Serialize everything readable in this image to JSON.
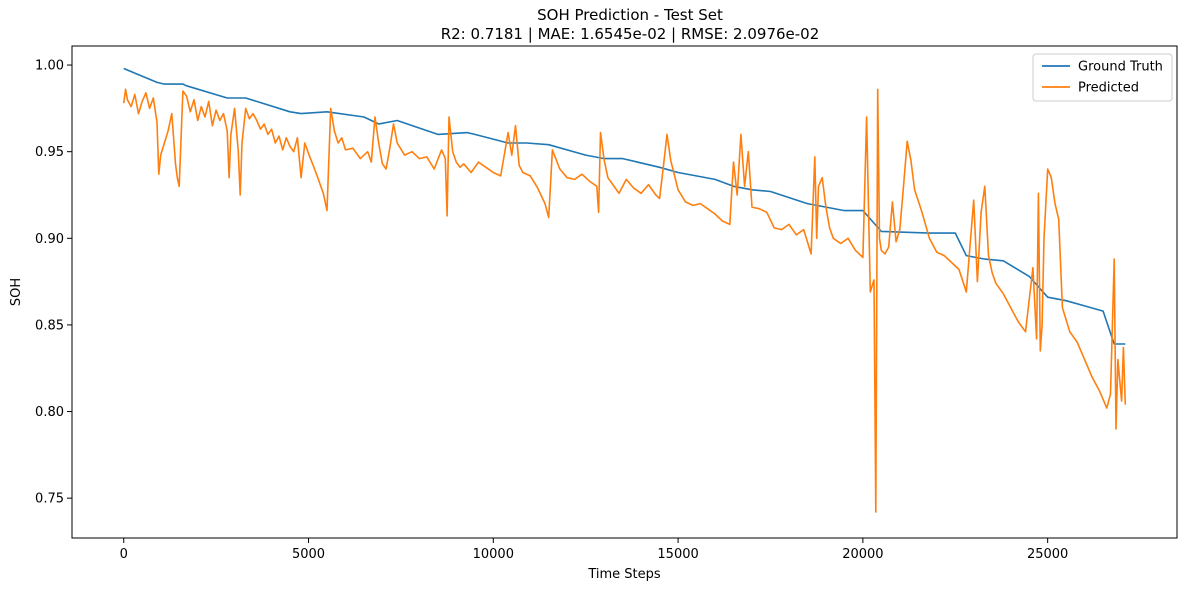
{
  "chart_data": {
    "type": "line",
    "title": "SOH Prediction - Test Set",
    "subtitle": "R2: 0.7181 | MAE: 1.6545e-02 | RMSE: 2.0976e-02",
    "xlabel": "Time Steps",
    "ylabel": "SOH",
    "xlim": [
      -1400,
      28500
    ],
    "ylim": [
      0.727,
      1.011
    ],
    "xticks": [
      0,
      5000,
      10000,
      15000,
      20000,
      25000
    ],
    "xtick_labels": [
      "0",
      "5000",
      "10000",
      "15000",
      "20000",
      "25000"
    ],
    "yticks": [
      0.75,
      0.8,
      0.85,
      0.9,
      0.95,
      1.0
    ],
    "ytick_labels": [
      "0.75",
      "0.80",
      "0.85",
      "0.90",
      "0.95",
      "1.00"
    ],
    "grid": false,
    "legend_position": "top-right",
    "series": [
      {
        "name": "Ground Truth",
        "color": "#1f77b4",
        "x": [
          0,
          900,
          1100,
          1600,
          1700,
          2800,
          3300,
          4500,
          4800,
          5500,
          6500,
          6900,
          7400,
          8500,
          9300,
          9500,
          10400,
          10900,
          11500,
          12500,
          13000,
          13500,
          14500,
          15000,
          16000,
          16500,
          17000,
          17500,
          18500,
          19500,
          20000,
          20500,
          21800,
          22500,
          22800,
          23300,
          23800,
          24500,
          25000,
          25500,
          26000,
          26500,
          26800,
          27100
        ],
        "y": [
          0.998,
          0.99,
          0.989,
          0.989,
          0.988,
          0.981,
          0.981,
          0.973,
          0.972,
          0.973,
          0.97,
          0.966,
          0.968,
          0.96,
          0.961,
          0.96,
          0.955,
          0.955,
          0.954,
          0.948,
          0.946,
          0.946,
          0.941,
          0.938,
          0.934,
          0.93,
          0.928,
          0.927,
          0.92,
          0.916,
          0.916,
          0.904,
          0.903,
          0.903,
          0.89,
          0.888,
          0.887,
          0.878,
          0.866,
          0.864,
          0.861,
          0.858,
          0.839,
          0.839
        ]
      },
      {
        "name": "Predicted",
        "color": "#ff7f0e",
        "x": [
          0,
          50,
          100,
          200,
          300,
          400,
          500,
          600,
          700,
          800,
          900,
          950,
          1000,
          1100,
          1200,
          1300,
          1350,
          1400,
          1450,
          1500,
          1600,
          1700,
          1800,
          1900,
          2000,
          2100,
          2200,
          2300,
          2400,
          2500,
          2600,
          2700,
          2800,
          2850,
          2900,
          3000,
          3100,
          3150,
          3200,
          3300,
          3400,
          3500,
          3600,
          3700,
          3800,
          3900,
          4000,
          4100,
          4200,
          4300,
          4400,
          4500,
          4600,
          4700,
          4800,
          4900,
          5000,
          5200,
          5400,
          5500,
          5600,
          5700,
          5800,
          5900,
          6000,
          6200,
          6400,
          6600,
          6700,
          6800,
          6900,
          7000,
          7100,
          7200,
          7300,
          7400,
          7600,
          7800,
          8000,
          8200,
          8400,
          8600,
          8700,
          8750,
          8800,
          8900,
          9000,
          9100,
          9200,
          9400,
          9600,
          9800,
          10000,
          10200,
          10400,
          10500,
          10600,
          10700,
          10800,
          11000,
          11200,
          11400,
          11500,
          11600,
          11800,
          12000,
          12200,
          12400,
          12600,
          12800,
          12850,
          12900,
          13000,
          13100,
          13200,
          13400,
          13600,
          13800,
          14000,
          14200,
          14400,
          14500,
          14600,
          14700,
          14800,
          15000,
          15200,
          15400,
          15600,
          15800,
          16000,
          16200,
          16400,
          16500,
          16600,
          16700,
          16800,
          16900,
          17000,
          17200,
          17400,
          17600,
          17800,
          18000,
          18200,
          18400,
          18600,
          18700,
          18750,
          18800,
          18900,
          19000,
          19100,
          19200,
          19400,
          19600,
          19800,
          20000,
          20100,
          20200,
          20300,
          20350,
          20400,
          20450,
          20500,
          20600,
          20700,
          20800,
          20900,
          21000,
          21100,
          21200,
          21300,
          21400,
          21600,
          21800,
          22000,
          22200,
          22400,
          22600,
          22800,
          23000,
          23100,
          23200,
          23300,
          23400,
          23500,
          23600,
          23800,
          24000,
          24200,
          24400,
          24600,
          24700,
          24750,
          24800,
          24850,
          24900,
          25000,
          25100,
          25200,
          25300,
          25400,
          25600,
          25800,
          26000,
          26200,
          26400,
          26600,
          26700,
          26800,
          26850,
          26900,
          27000,
          27050,
          27100
        ],
        "y": [
          0.978,
          0.986,
          0.98,
          0.976,
          0.983,
          0.972,
          0.979,
          0.984,
          0.975,
          0.981,
          0.967,
          0.937,
          0.948,
          0.955,
          0.962,
          0.972,
          0.958,
          0.943,
          0.935,
          0.93,
          0.985,
          0.982,
          0.973,
          0.98,
          0.968,
          0.976,
          0.97,
          0.979,
          0.965,
          0.974,
          0.968,
          0.972,
          0.962,
          0.935,
          0.96,
          0.975,
          0.95,
          0.925,
          0.955,
          0.975,
          0.969,
          0.972,
          0.968,
          0.963,
          0.966,
          0.96,
          0.963,
          0.955,
          0.959,
          0.951,
          0.958,
          0.953,
          0.95,
          0.958,
          0.935,
          0.955,
          0.949,
          0.938,
          0.926,
          0.916,
          0.975,
          0.962,
          0.955,
          0.958,
          0.951,
          0.952,
          0.946,
          0.95,
          0.944,
          0.97,
          0.955,
          0.943,
          0.94,
          0.952,
          0.966,
          0.955,
          0.948,
          0.95,
          0.946,
          0.947,
          0.94,
          0.951,
          0.946,
          0.913,
          0.97,
          0.95,
          0.944,
          0.941,
          0.943,
          0.938,
          0.944,
          0.941,
          0.938,
          0.936,
          0.961,
          0.948,
          0.965,
          0.942,
          0.938,
          0.936,
          0.929,
          0.92,
          0.912,
          0.951,
          0.94,
          0.935,
          0.934,
          0.937,
          0.933,
          0.93,
          0.915,
          0.961,
          0.945,
          0.935,
          0.932,
          0.926,
          0.934,
          0.929,
          0.926,
          0.931,
          0.925,
          0.923,
          0.941,
          0.96,
          0.945,
          0.928,
          0.921,
          0.919,
          0.92,
          0.917,
          0.914,
          0.91,
          0.908,
          0.944,
          0.925,
          0.96,
          0.93,
          0.95,
          0.918,
          0.917,
          0.915,
          0.906,
          0.905,
          0.908,
          0.902,
          0.905,
          0.891,
          0.947,
          0.9,
          0.93,
          0.935,
          0.918,
          0.906,
          0.9,
          0.897,
          0.9,
          0.893,
          0.889,
          0.97,
          0.869,
          0.876,
          0.742,
          0.986,
          0.9,
          0.893,
          0.891,
          0.895,
          0.921,
          0.898,
          0.905,
          0.93,
          0.956,
          0.945,
          0.928,
          0.915,
          0.9,
          0.892,
          0.89,
          0.886,
          0.882,
          0.869,
          0.922,
          0.875,
          0.915,
          0.93,
          0.89,
          0.88,
          0.874,
          0.868,
          0.86,
          0.852,
          0.846,
          0.883,
          0.842,
          0.926,
          0.835,
          0.85,
          0.9,
          0.94,
          0.935,
          0.92,
          0.911,
          0.86,
          0.846,
          0.84,
          0.83,
          0.82,
          0.812,
          0.802,
          0.81,
          0.888,
          0.79,
          0.83,
          0.806,
          0.837,
          0.804
        ]
      }
    ]
  }
}
